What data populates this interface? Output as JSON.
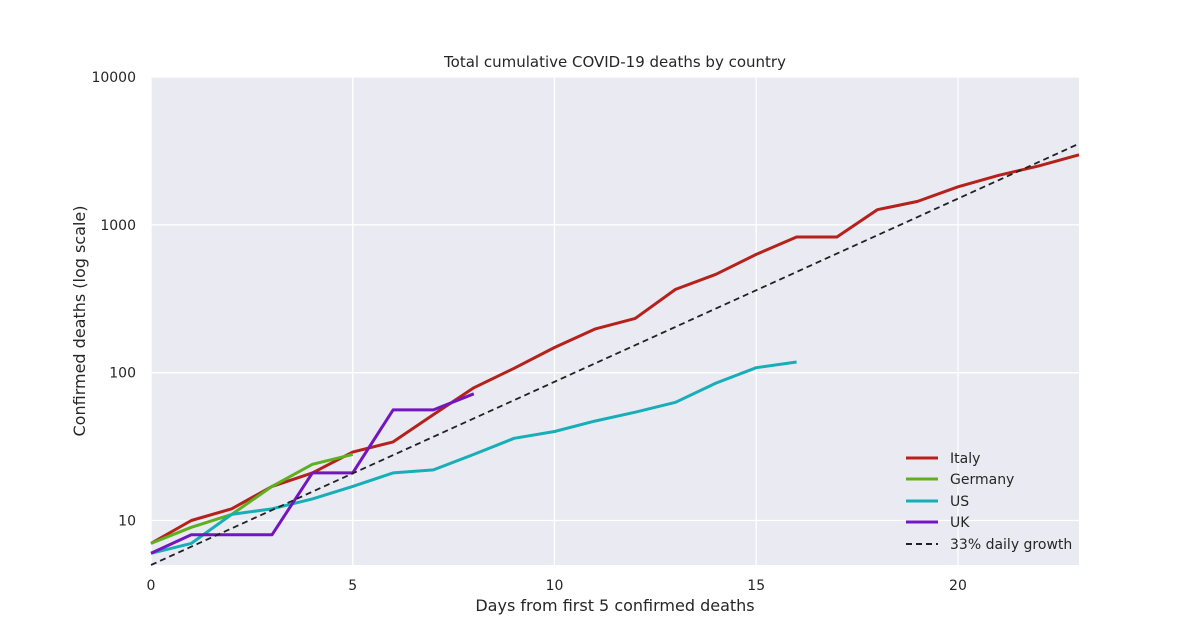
{
  "chart_data": {
    "type": "line",
    "title": "Total cumulative COVID-19 deaths by country",
    "xlabel": "Days from first 5 confirmed deaths",
    "ylabel": "Confirmed deaths (log scale)",
    "xlim": [
      0,
      23
    ],
    "ylim": [
      5,
      10000
    ],
    "yscale": "log",
    "grid": true,
    "legend_position": "bottom-right",
    "x_ticks": [
      0,
      5,
      10,
      15,
      20
    ],
    "x_tick_labels": [
      "0",
      "5",
      "10",
      "15",
      "20"
    ],
    "y_ticks": [
      10,
      100,
      1000,
      10000
    ],
    "y_tick_labels": [
      "10",
      "100",
      "1000",
      "10000"
    ],
    "background_color": "#EAEAF2",
    "grid_color": "#FFFFFF",
    "series": [
      {
        "name": "Italy",
        "color": "#B5221B",
        "style": "solid",
        "x": [
          0,
          1,
          2,
          3,
          4,
          5,
          6,
          7,
          8,
          9,
          10,
          11,
          12,
          13,
          14,
          15,
          16,
          17,
          18,
          19,
          20,
          21,
          22,
          23
        ],
        "y": [
          7,
          10,
          12,
          17,
          21,
          29,
          34,
          52,
          79,
          107,
          148,
          197,
          233,
          366,
          463,
          631,
          827,
          827,
          1266,
          1441,
          1809,
          2158,
          2503,
          2978
        ]
      },
      {
        "name": "Germany",
        "color": "#5DB01E",
        "style": "solid",
        "x": [
          0,
          1,
          2,
          3,
          4,
          5
        ],
        "y": [
          7,
          9,
          11,
          17,
          24,
          28
        ]
      },
      {
        "name": "US",
        "color": "#17AEB8",
        "style": "solid",
        "x": [
          0,
          1,
          2,
          3,
          4,
          5,
          6,
          7,
          8,
          9,
          10,
          11,
          12,
          13,
          14,
          15,
          16
        ],
        "y": [
          6,
          7,
          11,
          12,
          14,
          17,
          21,
          22,
          28,
          36,
          40,
          47,
          54,
          63,
          85,
          108,
          118
        ]
      },
      {
        "name": "UK",
        "color": "#7416C0",
        "style": "solid",
        "x": [
          0,
          1,
          2,
          3,
          4,
          5,
          6,
          7,
          8
        ],
        "y": [
          6,
          8,
          8,
          8,
          21,
          21,
          56,
          56,
          72
        ]
      },
      {
        "name": "33% daily growth",
        "color": "#222222",
        "style": "dashed",
        "x": [
          0,
          23
        ],
        "y": [
          5,
          3540
        ]
      }
    ]
  }
}
